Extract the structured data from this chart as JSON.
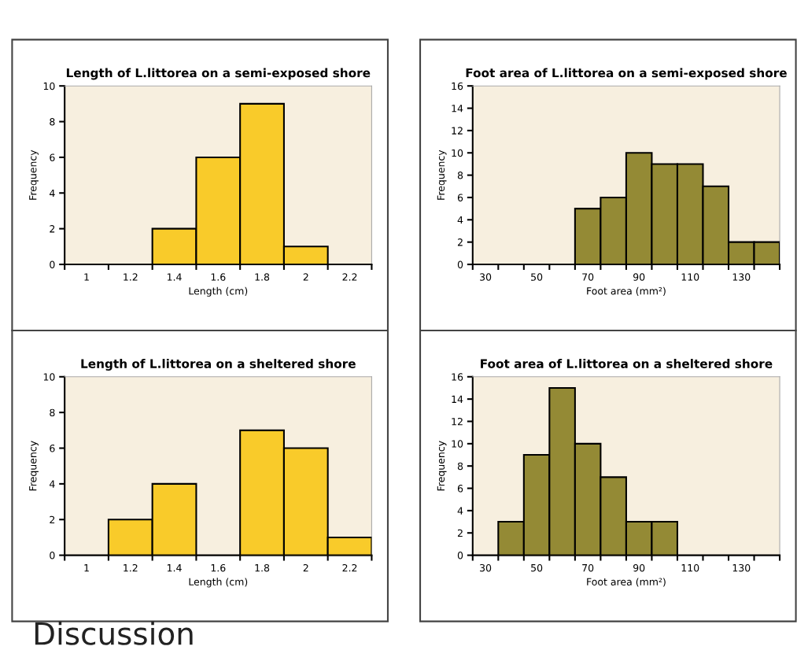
{
  "chart_data": [
    {
      "type": "histogram",
      "title": "Length of L.littorea on a semi-exposed shore",
      "xlabel": "Length (cm)",
      "ylabel": "Frequency",
      "color": "#f9cb2a",
      "bins": [
        0.9,
        1.1,
        1.3,
        1.5,
        1.7,
        1.9,
        2.1,
        2.3
      ],
      "values": [
        0,
        0,
        2,
        6,
        9,
        1,
        0
      ],
      "xlim": [
        0.9,
        2.3
      ],
      "xticks": [
        1,
        1.2,
        1.4,
        1.6,
        1.8,
        2,
        2.2
      ],
      "ylim": [
        0,
        10
      ],
      "yticks": [
        0,
        2,
        4,
        6,
        8,
        10
      ]
    },
    {
      "type": "histogram",
      "title": "Foot area of L.littorea on a semi-exposed shore",
      "xlabel": "Foot area (mm²)",
      "ylabel": "Frequency",
      "color": "#948a35",
      "bins": [
        25,
        35,
        45,
        55,
        65,
        75,
        85,
        95,
        105,
        115,
        125,
        135,
        145
      ],
      "values": [
        0,
        0,
        0,
        0,
        5,
        6,
        10,
        9,
        9,
        7,
        2,
        2
      ],
      "xlim": [
        25,
        145
      ],
      "xticks": [
        30,
        50,
        70,
        90,
        110,
        130
      ],
      "ylim": [
        0,
        16
      ],
      "yticks": [
        0,
        2,
        4,
        6,
        8,
        10,
        12,
        14,
        16
      ]
    },
    {
      "type": "histogram",
      "title": "Length of L.littorea on a sheltered shore",
      "xlabel": "Length (cm)",
      "ylabel": "Frequency",
      "color": "#f9cb2a",
      "bins": [
        0.9,
        1.1,
        1.3,
        1.5,
        1.7,
        1.9,
        2.1,
        2.3
      ],
      "values": [
        0,
        2,
        4,
        0,
        7,
        6,
        1
      ],
      "xlim": [
        0.9,
        2.3
      ],
      "xticks": [
        1,
        1.2,
        1.4,
        1.6,
        1.8,
        2,
        2.2
      ],
      "ylim": [
        0,
        10
      ],
      "yticks": [
        0,
        2,
        4,
        6,
        8,
        10
      ],
      "annotations": [
        "Discussion"
      ]
    },
    {
      "type": "histogram",
      "title": "Foot area of L.littorea on a sheltered shore",
      "xlabel": "Foot area (mm²)",
      "ylabel": "Frequency",
      "color": "#948a35",
      "bins": [
        25,
        35,
        45,
        55,
        65,
        75,
        85,
        95,
        105,
        115,
        125,
        135,
        145
      ],
      "values": [
        0,
        3,
        9,
        15,
        10,
        7,
        3,
        3,
        0,
        0,
        0,
        0
      ],
      "xlim": [
        25,
        145
      ],
      "xticks": [
        30,
        50,
        70,
        90,
        110,
        130
      ],
      "ylim": [
        0,
        16
      ],
      "yticks": [
        0,
        2,
        4,
        6,
        8,
        10,
        12,
        14,
        16
      ]
    }
  ]
}
